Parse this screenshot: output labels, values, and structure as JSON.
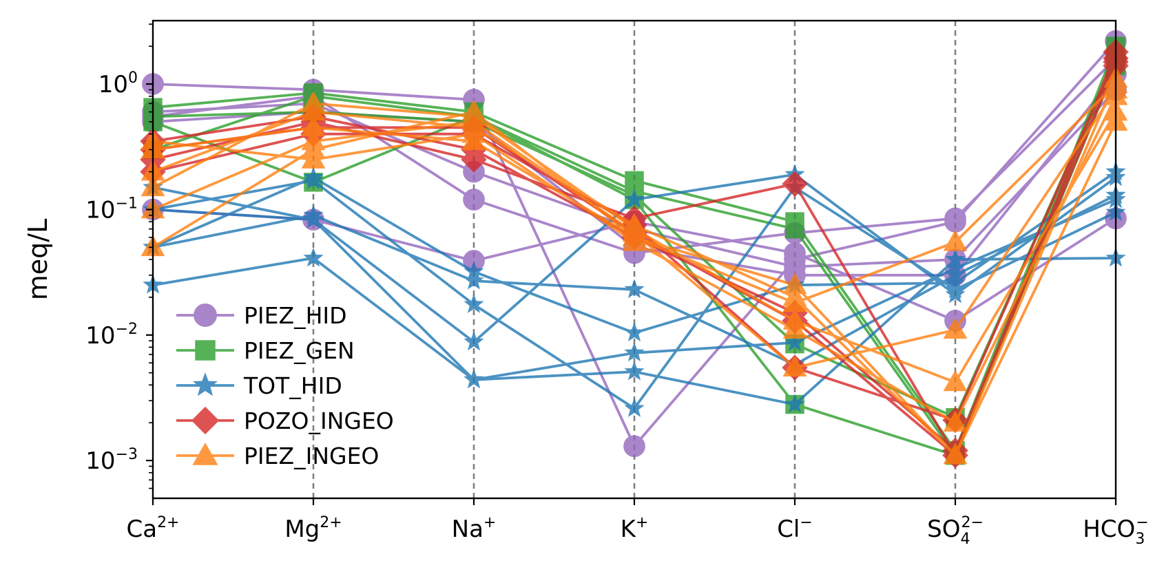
{
  "chart_data": {
    "type": "line",
    "ylabel": "meq/L",
    "yscale": "log",
    "ylim": [
      0.0005,
      3.2
    ],
    "y_ticks": [
      {
        "value": 1,
        "base": "10",
        "exp": "0"
      },
      {
        "value": 0.1,
        "base": "10",
        "exp": "−1"
      },
      {
        "value": 0.01,
        "base": "10",
        "exp": "−2"
      },
      {
        "value": 0.001,
        "base": "10",
        "exp": "−3"
      }
    ],
    "categories": [
      {
        "main": "Ca",
        "sup": "2+",
        "sub": ""
      },
      {
        "main": "Mg",
        "sup": "2+",
        "sub": ""
      },
      {
        "main": "Na",
        "sup": "+",
        "sub": ""
      },
      {
        "main": "K",
        "sup": "+",
        "sub": ""
      },
      {
        "main": "Cl",
        "sup": "−",
        "sub": ""
      },
      {
        "main": "SO",
        "sup": "2−",
        "sub": "4"
      },
      {
        "main": "HCO",
        "sup": "−",
        "sub": "3"
      }
    ],
    "vertical_gridlines": "dashed gray at interior categories",
    "legend_position": "lower-left",
    "groups": [
      {
        "name": "PIEZ_HID",
        "color": "#9467bd",
        "marker": "circle",
        "series": [
          [
            1.0,
            0.9,
            0.75,
            0.0013,
            0.04,
            0.08,
            2.2
          ],
          [
            0.55,
            0.8,
            0.12,
            0.045,
            0.065,
            0.085,
            1.6
          ],
          [
            0.1,
            0.083,
            0.039,
            0.08,
            0.045,
            0.013,
            0.085
          ],
          [
            0.6,
            0.7,
            0.2,
            0.07,
            0.035,
            0.04,
            0.9
          ],
          [
            0.5,
            0.6,
            0.5,
            0.05,
            0.03,
            0.03,
            1.2
          ]
        ]
      },
      {
        "name": "PIEZ_GEN",
        "color": "#2ca02c",
        "marker": "square",
        "series": [
          [
            0.65,
            0.85,
            0.6,
            0.17,
            0.08,
            0.0012,
            2.0
          ],
          [
            0.5,
            0.165,
            0.55,
            0.14,
            0.07,
            0.0011,
            1.7
          ],
          [
            0.3,
            0.8,
            0.55,
            0.12,
            0.0028,
            0.0011,
            1.4
          ],
          [
            0.55,
            0.6,
            0.5,
            0.13,
            0.0085,
            0.0022,
            1.6
          ]
        ]
      },
      {
        "name": "TOT_HID",
        "color": "#1f77b4",
        "marker": "star",
        "series": [
          [
            0.1,
            0.083,
            0.0088,
            0.12,
            0.19,
            0.021,
            0.18
          ],
          [
            0.15,
            0.083,
            0.0044,
            0.0051,
            0.0028,
            0.04,
            0.041
          ],
          [
            0.025,
            0.041,
            0.0044,
            0.0072,
            0.0087,
            0.034,
            0.12
          ],
          [
            0.1,
            0.17,
            0.0175,
            0.0026,
            0.15,
            0.023,
            0.095
          ],
          [
            0.05,
            0.09,
            0.027,
            0.023,
            0.0058,
            0.03,
            0.13
          ],
          [
            0.05,
            0.18,
            0.032,
            0.0104,
            0.025,
            0.026,
            0.2
          ]
        ]
      },
      {
        "name": "POZO_INGEO",
        "color": "#d62728",
        "marker": "diamond",
        "series": [
          [
            0.25,
            0.5,
            0.25,
            0.085,
            0.16,
            0.0011,
            1.5
          ],
          [
            0.2,
            0.4,
            0.4,
            0.075,
            0.0055,
            0.0021,
            1.6
          ],
          [
            0.3,
            0.45,
            0.45,
            0.065,
            0.013,
            0.0011,
            1.8
          ],
          [
            0.35,
            0.55,
            0.3,
            0.06,
            0.015,
            0.0012,
            1.4
          ]
        ]
      },
      {
        "name": "PIEZ_INGEO",
        "color": "#ff7f0e",
        "marker": "triangle",
        "series": [
          [
            0.05,
            0.3,
            0.6,
            0.06,
            0.018,
            0.055,
            1.0
          ],
          [
            0.1,
            0.35,
            0.5,
            0.065,
            0.0055,
            0.011,
            0.9
          ],
          [
            0.15,
            0.7,
            0.55,
            0.07,
            0.013,
            0.0042,
            0.6
          ],
          [
            0.2,
            0.6,
            0.45,
            0.075,
            0.02,
            0.0011,
            0.5
          ],
          [
            0.3,
            0.45,
            0.35,
            0.06,
            0.025,
            0.0011,
            1.1
          ],
          [
            0.35,
            0.25,
            0.4,
            0.055,
            0.011,
            0.002,
            0.8
          ]
        ]
      }
    ]
  }
}
